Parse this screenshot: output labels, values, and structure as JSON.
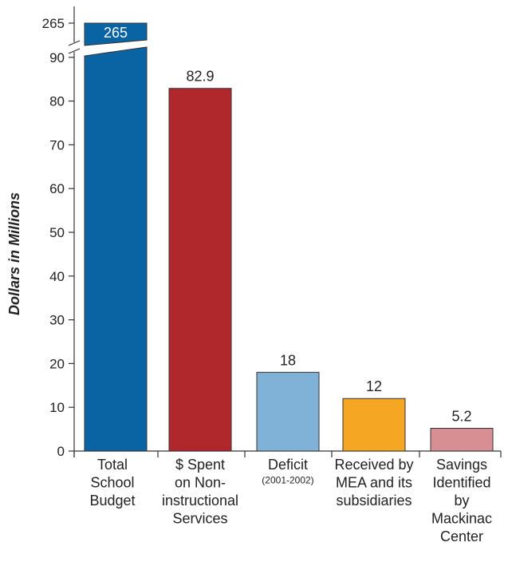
{
  "chart_data": {
    "type": "bar",
    "ylabel": "Dollars in Millions",
    "y_ticks": [
      "0",
      "10",
      "20",
      "30",
      "40",
      "50",
      "60",
      "70",
      "80",
      "90"
    ],
    "y_break_tick": "265",
    "axis_break": {
      "lower_max": 90,
      "upper_value": 265
    },
    "ylim": [
      0,
      265
    ],
    "categories": [
      {
        "lines": [
          "Total",
          "School",
          "Budget"
        ],
        "sub": ""
      },
      {
        "lines": [
          "$ Spent",
          "on Non-",
          "instructional",
          "Services"
        ],
        "sub": ""
      },
      {
        "lines": [
          "Deficit"
        ],
        "sub": "(2001-2002)"
      },
      {
        "lines": [
          "Received by",
          "MEA and its",
          "subsidiaries"
        ],
        "sub": ""
      },
      {
        "lines": [
          "Savings",
          "Identified",
          "by",
          "Mackinac",
          "Center"
        ],
        "sub": ""
      }
    ],
    "values": [
      265,
      82.9,
      18,
      12,
      5.2
    ],
    "value_labels": [
      "265",
      "82.9",
      "18",
      "12",
      "5.2"
    ],
    "colors": [
      "#0a64a4",
      "#b0272c",
      "#7fb2d6",
      "#f5a623",
      "#d88f93"
    ],
    "grid": false,
    "legend": "none"
  }
}
